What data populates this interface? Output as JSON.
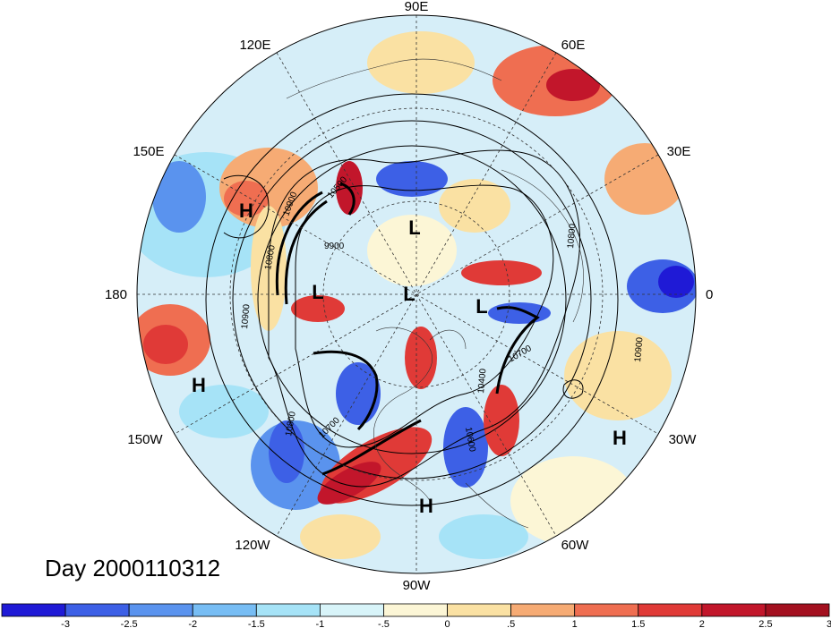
{
  "title": "Day 2000110312",
  "longitude_labels": {
    "n90e": "90E",
    "n60e": "60E",
    "n30e": "30E",
    "n0": "0",
    "n30w": "30W",
    "n60w": "60W",
    "n90w": "90W",
    "n120w": "120W",
    "n150w": "150W",
    "n180": "180",
    "n150e": "150E",
    "n120e": "120E"
  },
  "pressure_centers": [
    {
      "label": "H",
      "region": "north-pacific-west"
    },
    {
      "label": "H",
      "region": "north-pacific-east"
    },
    {
      "label": "H",
      "region": "mid-atlantic"
    },
    {
      "label": "H",
      "region": "gulf-of-mexico"
    },
    {
      "label": "L",
      "region": "siberia"
    },
    {
      "label": "L",
      "region": "east-siberian-sea"
    },
    {
      "label": "L",
      "region": "north-pole"
    },
    {
      "label": "L",
      "region": "greenland"
    }
  ],
  "contour_labels": [
    "10900",
    "10800",
    "9900",
    "10500",
    "10900",
    "10800",
    "10700",
    "10400",
    "10700",
    "10600",
    "10800",
    "10900"
  ],
  "colorbar": {
    "ticks": [
      "-3",
      "-2.5",
      "-2",
      "-1.5",
      "-1",
      "-.5",
      "0",
      ".5",
      "1",
      "1.5",
      "2",
      "2.5",
      "3"
    ],
    "colors": [
      "#1f1ad6",
      "#3d60e6",
      "#5a93ee",
      "#77bdf4",
      "#a6e3f7",
      "#d8f4f9",
      "#fcf6d6",
      "#fae1a3",
      "#f6ab74",
      "#ef6e51",
      "#e03a37",
      "#c2162b",
      "#a3101f"
    ]
  }
}
